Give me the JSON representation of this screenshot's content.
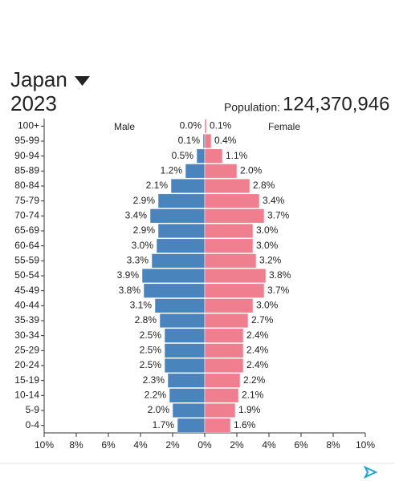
{
  "chart_data": {
    "type": "pyramid",
    "title": "Japan",
    "subtitle": "2023",
    "population_label": "Population:",
    "population": "124,370,946",
    "categories": [
      "100+",
      "95-99",
      "90-94",
      "85-89",
      "80-84",
      "75-79",
      "70-74",
      "65-69",
      "60-64",
      "55-59",
      "50-54",
      "45-49",
      "40-44",
      "35-39",
      "30-34",
      "25-29",
      "20-24",
      "15-19",
      "10-14",
      "5-9",
      "0-4"
    ],
    "series": [
      {
        "name": "Male",
        "color": "#4a84bd",
        "values": [
          0.0,
          0.1,
          0.5,
          1.2,
          2.1,
          2.9,
          3.4,
          2.9,
          3.0,
          3.3,
          3.9,
          3.8,
          3.1,
          2.8,
          2.5,
          2.5,
          2.5,
          2.3,
          2.2,
          2.0,
          1.7
        ],
        "value_labels": [
          "0.0%",
          "0.1%",
          "0.5%",
          "1.2%",
          "2.1%",
          "2.9%",
          "3.4%",
          "2.9%",
          "3.0%",
          "3.3%",
          "3.9%",
          "3.8%",
          "3.1%",
          "2.8%",
          "2.5%",
          "2.5%",
          "2.5%",
          "2.3%",
          "2.2%",
          "2.0%",
          "1.7%"
        ]
      },
      {
        "name": "Female",
        "color": "#ef7f8e",
        "values": [
          0.1,
          0.4,
          1.1,
          2.0,
          2.8,
          3.4,
          3.7,
          3.0,
          3.0,
          3.2,
          3.8,
          3.7,
          3.0,
          2.7,
          2.4,
          2.4,
          2.4,
          2.2,
          2.1,
          1.9,
          1.6
        ],
        "value_labels": [
          "0.1%",
          "0.4%",
          "1.1%",
          "2.0%",
          "2.8%",
          "3.4%",
          "3.7%",
          "3.0%",
          "3.0%",
          "3.2%",
          "3.8%",
          "3.7%",
          "3.0%",
          "2.7%",
          "2.4%",
          "2.4%",
          "2.4%",
          "2.2%",
          "2.1%",
          "1.9%",
          "1.6%"
        ]
      }
    ],
    "xlim": [
      -10,
      10
    ],
    "xticks": [
      {
        "value": -10,
        "label": "10%"
      },
      {
        "value": -8,
        "label": "8%"
      },
      {
        "value": -6,
        "label": "6%"
      },
      {
        "value": -4,
        "label": "4%"
      },
      {
        "value": -2,
        "label": "2%"
      },
      {
        "value": 0,
        "label": "0%"
      },
      {
        "value": 2,
        "label": "2%"
      },
      {
        "value": 4,
        "label": "4%"
      },
      {
        "value": 6,
        "label": "6%"
      },
      {
        "value": 8,
        "label": "8%"
      },
      {
        "value": 10,
        "label": "10%"
      }
    ]
  }
}
